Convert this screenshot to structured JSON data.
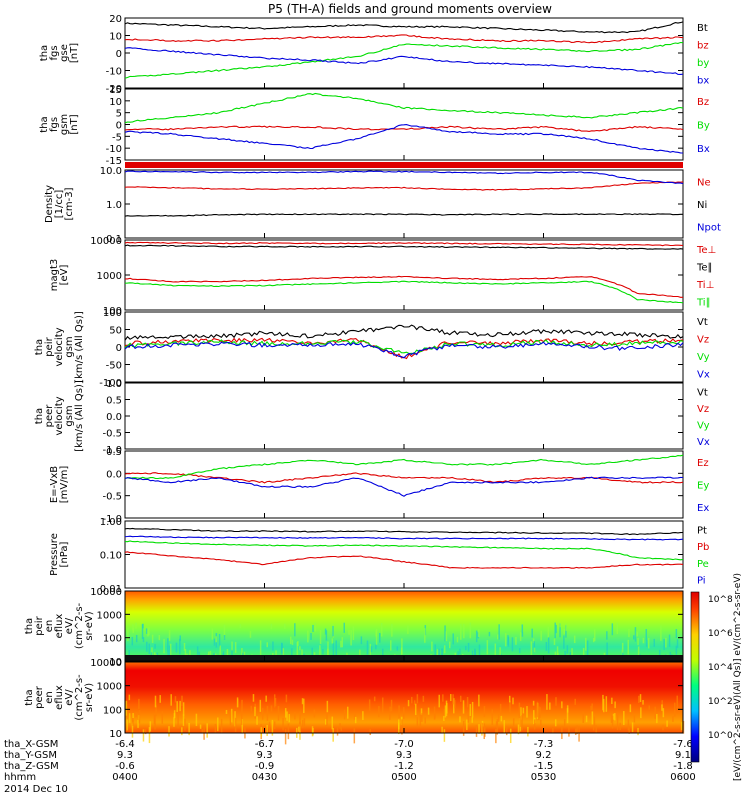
{
  "title": "P5 (TH-A) fields and ground moments overview",
  "colors": {
    "black": "#000000",
    "red": "#dd0000",
    "green": "#00dd00",
    "blue": "#0000dd"
  },
  "panels": [
    {
      "id": "fgs_mag",
      "ylabel": [
        "tha",
        "fgs",
        "gse",
        "[nT]"
      ],
      "scale": "linear",
      "yticks": [
        "20",
        "10",
        "0",
        "-10",
        "-20"
      ],
      "legend": [
        {
          "text": "Bt",
          "color": "black"
        },
        {
          "text": "bz",
          "color": "red"
        },
        {
          "text": "by",
          "color": "green"
        },
        {
          "text": "bx",
          "color": "blue"
        }
      ]
    },
    {
      "id": "fgs_gsm",
      "ylabel": [
        "tha",
        "fgs",
        "gsm",
        "[nT]"
      ],
      "scale": "linear",
      "yticks": [
        "15",
        "10",
        "5",
        "0",
        "-5",
        "-10",
        "-15"
      ],
      "legend": [
        {
          "text": "Bz",
          "color": "red"
        },
        {
          "text": "By",
          "color": "green"
        },
        {
          "text": "Bx",
          "color": "blue"
        }
      ]
    },
    {
      "id": "density",
      "ylabel": [
        "Density",
        "[1/cc]",
        "[cm-3]"
      ],
      "scale": "log",
      "yticks": [
        "10.0",
        "1.0",
        "0.1"
      ],
      "legend": [
        {
          "text": "Ne",
          "color": "red"
        },
        {
          "text": "Ni",
          "color": "black"
        },
        {
          "text": "Npot",
          "color": "blue"
        }
      ]
    },
    {
      "id": "temp",
      "ylabel": [
        "magt3",
        "[eV]"
      ],
      "scale": "log",
      "yticks": [
        "10000",
        "1000",
        "100"
      ],
      "legend": [
        {
          "text": "Te⊥",
          "color": "red"
        },
        {
          "text": "Te∥",
          "color": "black"
        },
        {
          "text": "Ti⊥",
          "color": "red"
        },
        {
          "text": "Ti∥",
          "color": "green"
        }
      ]
    },
    {
      "id": "peir_vel",
      "ylabel": [
        "tha",
        "peir",
        "velocity",
        "gsm",
        "[km/s (All Qs)]"
      ],
      "scale": "linear",
      "yticks": [
        "100",
        "50",
        "0",
        "-50",
        "-100"
      ],
      "legend": [
        {
          "text": "Vt",
          "color": "black"
        },
        {
          "text": "Vz",
          "color": "red"
        },
        {
          "text": "Vy",
          "color": "green"
        },
        {
          "text": "Vx",
          "color": "blue"
        }
      ]
    },
    {
      "id": "peer_vel",
      "ylabel": [
        "tha",
        "peer",
        "velocity",
        "gsm",
        "[km/s (All Qs)]"
      ],
      "scale": "linear",
      "yticks": [
        "1.0",
        "0.5",
        "0.0",
        "-0.5",
        "-1.0"
      ],
      "legend": [
        {
          "text": "Vt",
          "color": "black"
        },
        {
          "text": "Vz",
          "color": "red"
        },
        {
          "text": "Vy",
          "color": "green"
        },
        {
          "text": "Vx",
          "color": "blue"
        }
      ]
    },
    {
      "id": "efield",
      "ylabel": [
        "E=-VxB",
        "[mV/m]"
      ],
      "scale": "linear",
      "yticks": [
        "0.5",
        "0.0",
        "-0.5",
        "-1.0"
      ],
      "legend": [
        {
          "text": "Ez",
          "color": "red"
        },
        {
          "text": "Ey",
          "color": "green"
        },
        {
          "text": "Ex",
          "color": "blue"
        }
      ]
    },
    {
      "id": "pressure",
      "ylabel": [
        "Pressure",
        "[nPa]"
      ],
      "scale": "log",
      "yticks": [
        "1.00",
        "0.10",
        "0.01"
      ],
      "legend": [
        {
          "text": "Pt",
          "color": "black"
        },
        {
          "text": "Pb",
          "color": "red"
        },
        {
          "text": "Pe",
          "color": "green"
        },
        {
          "text": "Pi",
          "color": "blue"
        }
      ]
    },
    {
      "id": "peir_spec",
      "ylabel": [
        "tha",
        "peir",
        "en",
        "eflux",
        "eV/",
        "(cm^2-s-",
        "sr-eV)"
      ],
      "scale": "log",
      "yticks": [
        "10000",
        "1000",
        "100",
        "10"
      ],
      "legend": []
    },
    {
      "id": "peer_spec",
      "ylabel": [
        "tha",
        "peer",
        "en",
        "eflux",
        "eV/",
        "(cm^2-s-",
        "sr-eV)"
      ],
      "scale": "log",
      "yticks": [
        "10000",
        "1000",
        "100",
        "10"
      ],
      "legend": []
    }
  ],
  "colorbar": {
    "label": "[eV/(cm^2-s-sr-eV)(All Qs)] eV/(cm^2-s-sr-eV)",
    "ticks": [
      "10^8",
      "10^6",
      "10^4",
      "10^2",
      "10^0"
    ]
  },
  "xaxis": {
    "rows": [
      {
        "label": "tha_X-GSM",
        "values": [
          "-6.4",
          "-6.7",
          "-7.0",
          "-7.3",
          "-7.6"
        ]
      },
      {
        "label": "tha_Y-GSM",
        "values": [
          "9.3",
          "9.3",
          "9.3",
          "9.2",
          "9.1"
        ]
      },
      {
        "label": "tha_Z-GSM",
        "values": [
          "-0.6",
          "-0.9",
          "-1.2",
          "-1.5",
          "-1.8"
        ]
      },
      {
        "label": "hhmm",
        "values": [
          "0400",
          "0430",
          "0500",
          "0530",
          "0600"
        ]
      }
    ],
    "date": "2014 Dec 10"
  },
  "chart_data": [
    {
      "type": "line",
      "panel": "fgs_mag",
      "x_time": [
        "04:00",
        "04:10",
        "04:20",
        "04:30",
        "04:40",
        "04:50",
        "05:00",
        "05:10",
        "05:20",
        "05:30",
        "05:40",
        "05:50",
        "06:00"
      ],
      "ylim": [
        -20,
        20
      ],
      "series": [
        {
          "name": "Bt",
          "values": [
            17,
            16,
            15,
            14,
            15,
            16,
            15,
            15,
            14,
            13,
            12,
            12,
            18
          ]
        },
        {
          "name": "bz",
          "values": [
            8,
            7,
            7,
            8,
            9,
            9,
            10,
            8,
            7,
            7,
            6,
            8,
            9
          ]
        },
        {
          "name": "by",
          "values": [
            -14,
            -12,
            -10,
            -8,
            -5,
            -2,
            5,
            4,
            3,
            2,
            1,
            2,
            6
          ]
        },
        {
          "name": "bx",
          "values": [
            3,
            1,
            -1,
            -3,
            -4,
            -6,
            -2,
            -5,
            -6,
            -7,
            -8,
            -10,
            -12
          ]
        }
      ]
    },
    {
      "type": "line",
      "panel": "fgs_gsm",
      "ylim": [
        -15,
        15
      ],
      "series": [
        {
          "name": "Bz",
          "values": [
            -2,
            -2,
            -1,
            -1,
            -1,
            -2,
            -2,
            -1,
            -2,
            -1,
            -3,
            -1,
            -2
          ]
        },
        {
          "name": "By",
          "values": [
            1,
            3,
            5,
            9,
            13,
            11,
            7,
            6,
            5,
            4,
            3,
            5,
            7
          ]
        },
        {
          "name": "Bx",
          "values": [
            -3,
            -4,
            -6,
            -8,
            -10,
            -6,
            0,
            -3,
            -4,
            -4,
            -6,
            -10,
            -12
          ]
        }
      ]
    },
    {
      "type": "line",
      "panel": "density",
      "ylim": [
        0.1,
        10
      ],
      "scale": "log",
      "series": [
        {
          "name": "Ne",
          "values": [
            3.2,
            3.0,
            2.8,
            2.7,
            2.8,
            3.0,
            3.0,
            2.7,
            2.6,
            2.8,
            3.0,
            4.0,
            4.5
          ]
        },
        {
          "name": "Ni",
          "values": [
            0.45,
            0.45,
            0.48,
            0.5,
            0.5,
            0.5,
            0.5,
            0.48,
            0.5,
            0.5,
            0.5,
            0.5,
            0.5
          ]
        },
        {
          "name": "Npot",
          "values": [
            9,
            9,
            8.5,
            8.5,
            8.5,
            9,
            9,
            8.5,
            8,
            8.5,
            8.5,
            5,
            4
          ]
        }
      ]
    },
    {
      "type": "line",
      "panel": "temp",
      "ylim": [
        100,
        10000
      ],
      "scale": "log",
      "series": [
        {
          "name": "Te⊥",
          "values": [
            8500,
            8200,
            8000,
            8200,
            8000,
            8000,
            8200,
            8000,
            7800,
            7600,
            7500,
            7200,
            7000
          ]
        },
        {
          "name": "Te∥",
          "values": [
            7000,
            6800,
            6500,
            6500,
            6400,
            6500,
            6500,
            6300,
            6200,
            6000,
            5800,
            5600,
            5500
          ]
        },
        {
          "name": "Ti⊥",
          "values": [
            800,
            650,
            650,
            700,
            800,
            850,
            900,
            800,
            750,
            800,
            900,
            300,
            230
          ]
        },
        {
          "name": "Ti∥",
          "values": [
            600,
            500,
            480,
            500,
            550,
            600,
            650,
            600,
            550,
            600,
            650,
            200,
            160
          ]
        }
      ]
    },
    {
      "type": "line",
      "panel": "peir_vel",
      "ylim": [
        -100,
        100
      ],
      "series": [
        {
          "name": "Vt",
          "values": [
            25,
            30,
            30,
            40,
            30,
            45,
            60,
            40,
            35,
            45,
            40,
            35,
            30
          ]
        },
        {
          "name": "Vz",
          "values": [
            10,
            15,
            20,
            20,
            10,
            20,
            -30,
            15,
            10,
            20,
            10,
            15,
            20
          ]
        },
        {
          "name": "Vy",
          "values": [
            5,
            10,
            15,
            10,
            10,
            15,
            -20,
            10,
            5,
            15,
            5,
            10,
            15
          ]
        },
        {
          "name": "Vx",
          "values": [
            0,
            5,
            10,
            5,
            5,
            10,
            -25,
            5,
            0,
            10,
            0,
            -5,
            10
          ]
        }
      ]
    },
    {
      "type": "line",
      "panel": "peer_vel",
      "ylim": [
        -1,
        1
      ],
      "series": []
    },
    {
      "type": "line",
      "panel": "efield",
      "ylim": [
        -1.0,
        0.5
      ],
      "series": [
        {
          "name": "Ez",
          "values": [
            0.0,
            0.0,
            -0.1,
            -0.2,
            -0.1,
            0.0,
            -0.1,
            -0.1,
            -0.2,
            -0.1,
            -0.1,
            -0.2,
            -0.2
          ]
        },
        {
          "name": "Ey",
          "values": [
            -0.1,
            -0.1,
            0.1,
            0.2,
            0.3,
            0.2,
            0.3,
            0.2,
            0.2,
            0.3,
            0.2,
            0.3,
            0.4
          ]
        },
        {
          "name": "Ex",
          "values": [
            -0.1,
            -0.2,
            -0.1,
            -0.3,
            -0.3,
            -0.1,
            -0.5,
            -0.2,
            -0.2,
            -0.2,
            -0.1,
            -0.1,
            -0.1
          ]
        }
      ]
    },
    {
      "type": "line",
      "panel": "pressure",
      "ylim": [
        0.01,
        1.0
      ],
      "scale": "log",
      "series": [
        {
          "name": "Pt",
          "values": [
            0.6,
            0.55,
            0.5,
            0.5,
            0.48,
            0.5,
            0.48,
            0.46,
            0.45,
            0.44,
            0.43,
            0.4,
            0.45
          ]
        },
        {
          "name": "Pb",
          "values": [
            0.12,
            0.09,
            0.07,
            0.05,
            0.08,
            0.09,
            0.06,
            0.04,
            0.04,
            0.04,
            0.04,
            0.05,
            0.05
          ]
        },
        {
          "name": "Pe",
          "values": [
            0.25,
            0.22,
            0.2,
            0.19,
            0.18,
            0.19,
            0.18,
            0.17,
            0.16,
            0.15,
            0.15,
            0.08,
            0.07
          ]
        },
        {
          "name": "Pi",
          "values": [
            0.35,
            0.33,
            0.32,
            0.32,
            0.31,
            0.32,
            0.3,
            0.3,
            0.3,
            0.3,
            0.29,
            0.28,
            0.28
          ]
        }
      ]
    },
    {
      "type": "heatmap",
      "panel": "peir_spec",
      "ylim": [
        5,
        25000
      ],
      "scale": "log",
      "zlim": [
        "10^0",
        "10^8"
      ]
    },
    {
      "type": "heatmap",
      "panel": "peer_spec",
      "ylim": [
        5,
        25000
      ],
      "scale": "log",
      "zlim": [
        "10^0",
        "10^8"
      ]
    }
  ]
}
